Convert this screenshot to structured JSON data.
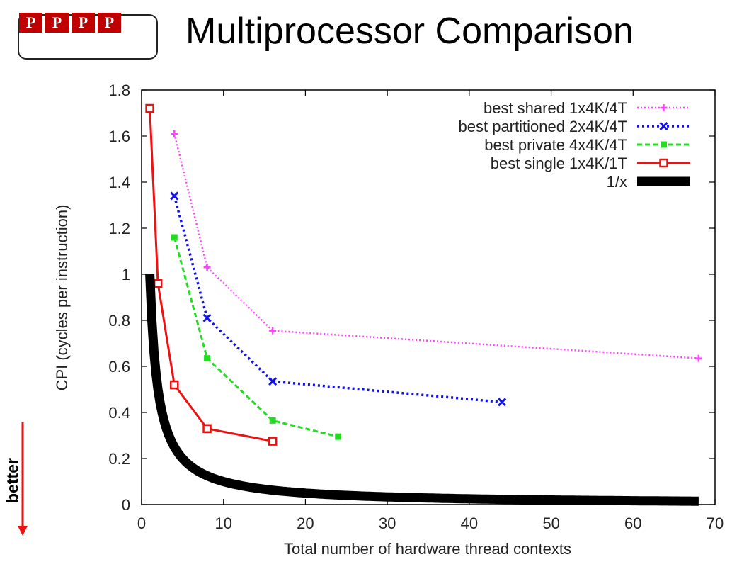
{
  "slide": {
    "title": "Multiprocessor Comparison",
    "logo_letters": [
      "P",
      "P",
      "P",
      "P"
    ],
    "better_label": "better"
  },
  "chart_data": {
    "type": "line",
    "title": "",
    "xlabel": "Total number of hardware thread contexts",
    "ylabel": "CPI (cycles per instruction)",
    "xlim": [
      0,
      70
    ],
    "ylim": [
      0,
      1.8
    ],
    "xticks": [
      0,
      10,
      20,
      30,
      40,
      50,
      60,
      70
    ],
    "yticks": [
      0,
      0.2,
      0.4,
      0.6,
      0.8,
      1,
      1.2,
      1.4,
      1.6,
      1.8
    ],
    "grid": false,
    "legend": "top-right",
    "series": [
      {
        "name": "best shared 1x4K/4T",
        "color": "#ff44ff",
        "dash": "dotted",
        "marker": "plus",
        "x": [
          4,
          8,
          16,
          68
        ],
        "y": [
          1.61,
          1.03,
          0.755,
          0.635
        ]
      },
      {
        "name": "best partitioned 2x4K/4T",
        "color": "#1111ee",
        "dash": "dotted-bold",
        "marker": "x",
        "x": [
          4,
          8,
          16,
          44
        ],
        "y": [
          1.34,
          0.81,
          0.535,
          0.445
        ]
      },
      {
        "name": "best private 4x4K/4T",
        "color": "#22dd22",
        "dash": "dashed",
        "marker": "filled-square",
        "x": [
          4,
          8,
          16,
          24
        ],
        "y": [
          1.16,
          0.635,
          0.365,
          0.295
        ]
      },
      {
        "name": "best single 1x4K/1T",
        "color": "#ee1111",
        "dash": "solid",
        "marker": "open-square",
        "x": [
          1,
          2,
          4,
          8,
          16
        ],
        "y": [
          1.72,
          0.96,
          0.52,
          0.33,
          0.275
        ]
      },
      {
        "name": "1/x",
        "color": "#000000",
        "dash": "thick",
        "marker": "none",
        "function": "1/x",
        "x_range": [
          1,
          68
        ]
      }
    ]
  }
}
